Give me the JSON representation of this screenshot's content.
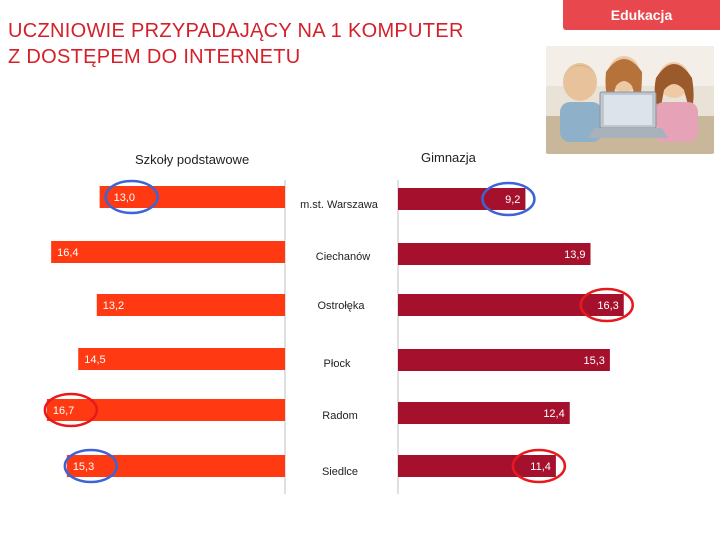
{
  "tag": {
    "label": "Edukacja"
  },
  "title": {
    "line1": "UCZNIOWIE PRZYPADAJĄCY NA 1 KOMPUTER",
    "line2": "Z DOSTĘPEM DO INTERNETU"
  },
  "colors": {
    "tag": "#e8474d",
    "title": "#d4202a",
    "left_series": "#ff3a12",
    "right_series": "#a5112d",
    "highlight_circle": "#3e63d4",
    "highlight_circle_red": "#e8191c",
    "siedlce_label": "#d4202a"
  },
  "chart_data": {
    "type": "bar",
    "orientation": "horizontal",
    "categories": [
      "m.st. Warszawa",
      "Ciechanów",
      "Ostrołęka",
      "Płock",
      "Radom",
      "Siedlce"
    ],
    "series": [
      {
        "name": "Szkoły podstawowe",
        "values": [
          13.0,
          16.4,
          13.2,
          14.5,
          16.7,
          15.3
        ],
        "labels": [
          "13,0",
          "16,4",
          "13,2",
          "14,5",
          "16,7",
          "15,3"
        ],
        "direction": "leftward"
      },
      {
        "name": "Gimnazja",
        "values": [
          9.2,
          13.9,
          16.3,
          15.3,
          12.4,
          11.4
        ],
        "labels": [
          "9,2",
          "13,9",
          "16,3",
          "15,3",
          "12,4",
          "11,4"
        ],
        "direction": "rightward"
      }
    ],
    "highlights": [
      {
        "series": 0,
        "category": 0,
        "color": "blue"
      },
      {
        "series": 0,
        "category": 4,
        "color": "red"
      },
      {
        "series": 0,
        "category": 5,
        "color": "blue"
      },
      {
        "series": 1,
        "category": 0,
        "color": "blue"
      },
      {
        "series": 1,
        "category": 2,
        "color": "red"
      },
      {
        "series": 1,
        "category": 5,
        "color": "red"
      }
    ],
    "highlighted_category_label": "Siedlce",
    "grid": false
  }
}
